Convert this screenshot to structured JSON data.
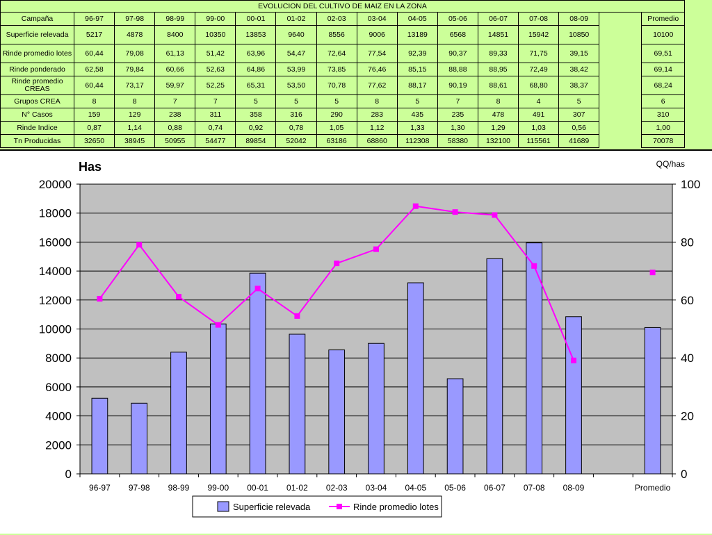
{
  "table": {
    "title": "EVOLUCION DEL CULTIVO DE MAIZ EN LA ZONA",
    "header_label": "Campaña",
    "columns": [
      "96-97",
      "97-98",
      "98-99",
      "99-00",
      "00-01",
      "01-02",
      "02-03",
      "03-04",
      "04-05",
      "05-06",
      "06-07",
      "07-08",
      "08-09"
    ],
    "average_label": "Promedio",
    "rows": [
      {
        "label": "Superficie relevada",
        "values": [
          "5217",
          "4878",
          "8400",
          "10350",
          "13853",
          "9640",
          "8556",
          "9006",
          "13189",
          "6568",
          "14851",
          "15942",
          "10850"
        ],
        "average": "10100"
      },
      {
        "label": "Rinde promedio lotes",
        "values": [
          "60,44",
          "79,08",
          "61,13",
          "51,42",
          "63,96",
          "54,47",
          "72,64",
          "77,54",
          "92,39",
          "90,37",
          "89,33",
          "71,75",
          "39,15"
        ],
        "average": "69,51"
      },
      {
        "label": "Rinde ponderado",
        "values": [
          "62,58",
          "79,84",
          "60,66",
          "52,63",
          "64,86",
          "53,99",
          "73,85",
          "76,46",
          "85,15",
          "88,88",
          "88,95",
          "72,49",
          "38,42"
        ],
        "average": "69,14"
      },
      {
        "label": "Rinde promedio CREAS",
        "values": [
          "60,44",
          "73,17",
          "59,97",
          "52,25",
          "65,31",
          "53,50",
          "70,78",
          "77,62",
          "88,17",
          "90,19",
          "88,61",
          "68,80",
          "38,37"
        ],
        "average": "68,24"
      },
      {
        "label": "Grupos CREA",
        "values": [
          "8",
          "8",
          "7",
          "7",
          "5",
          "5",
          "5",
          "8",
          "5",
          "7",
          "8",
          "4",
          "5"
        ],
        "average": "6"
      },
      {
        "label": "N° Casos",
        "values": [
          "159",
          "129",
          "238",
          "311",
          "358",
          "316",
          "290",
          "283",
          "435",
          "235",
          "478",
          "491",
          "307"
        ],
        "average": "310"
      },
      {
        "label": "Rinde Indice",
        "values": [
          "0,87",
          "1,14",
          "0,88",
          "0,74",
          "0,92",
          "0,78",
          "1,05",
          "1,12",
          "1,33",
          "1,30",
          "1,29",
          "1,03",
          "0,56"
        ],
        "average": "1,00"
      },
      {
        "label": "Tn Producidas",
        "values": [
          "32650",
          "38945",
          "50955",
          "54477",
          "89854",
          "52042",
          "63186",
          "68860",
          "112308",
          "58380",
          "132100",
          "115561",
          "41689"
        ],
        "average": "70078"
      }
    ]
  },
  "chart_data": {
    "type": "bar",
    "categories": [
      "96-97",
      "97-98",
      "98-99",
      "99-00",
      "00-01",
      "01-02",
      "02-03",
      "03-04",
      "04-05",
      "05-06",
      "06-07",
      "07-08",
      "08-09",
      "",
      "Promedio"
    ],
    "series": [
      {
        "name": "Superficie relevada",
        "type": "bar",
        "axis": "left",
        "color": "#9999ff",
        "values": [
          5217,
          4878,
          8400,
          10350,
          13853,
          9640,
          8556,
          9006,
          13189,
          6568,
          14851,
          15942,
          10850,
          null,
          10100
        ]
      },
      {
        "name": "Rinde promedio lotes",
        "type": "line",
        "axis": "right",
        "color": "#ff00ff",
        "values": [
          60.44,
          79.08,
          61.13,
          51.42,
          63.96,
          54.47,
          72.64,
          77.54,
          92.39,
          90.37,
          89.33,
          71.75,
          39.15,
          null,
          69.51
        ]
      }
    ],
    "ylabel": "Has",
    "y2label": "QQ/has",
    "ylim": [
      0,
      20000
    ],
    "yticks": [
      0,
      2000,
      4000,
      6000,
      8000,
      10000,
      12000,
      14000,
      16000,
      18000,
      20000
    ],
    "y2lim": [
      0,
      100
    ],
    "y2ticks": [
      0,
      20,
      40,
      60,
      80,
      100
    ],
    "grid": true,
    "legend_position": "bottom",
    "plot_background": "#c0c0c0"
  }
}
